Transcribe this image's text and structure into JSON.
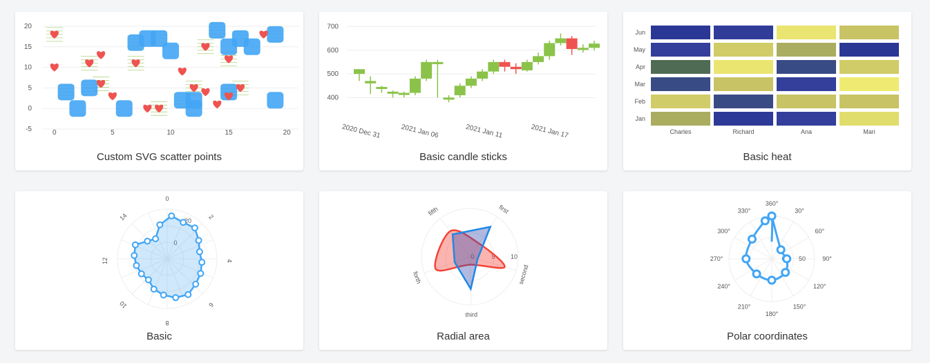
{
  "cards": {
    "scatter": {
      "caption": "Custom SVG scatter points"
    },
    "candles": {
      "caption": "Basic candle sticks"
    },
    "heat": {
      "caption": "Basic heat"
    },
    "radar": {
      "caption": "Basic"
    },
    "radial": {
      "caption": "Radial area"
    },
    "polar": {
      "caption": "Polar coordinates"
    }
  },
  "colors": {
    "blue": "#42a5f5",
    "red": "#ef5350",
    "green": "#8bc34a",
    "heat_navy": "#283593",
    "heat_yellow": "#f2ee73",
    "heat_teal": "#2e4d50",
    "radial_red": "#f44336",
    "radial_blue": "#1e88e5"
  },
  "chart_data": [
    {
      "id": "scatter",
      "type": "scatter",
      "title": "Custom SVG scatter points",
      "xlim": [
        -1,
        21
      ],
      "ylim": [
        -5,
        21
      ],
      "xticks": [
        "0",
        "5",
        "10",
        "15",
        "20"
      ],
      "yticks": [
        "-5",
        "0",
        "5",
        "10",
        "15",
        "20"
      ],
      "series": [
        {
          "marker": "square",
          "points": [
            [
              1,
              4
            ],
            [
              2,
              0
            ],
            [
              3,
              5
            ],
            [
              6,
              0
            ],
            [
              7,
              16
            ],
            [
              8,
              17
            ],
            [
              9,
              17
            ],
            [
              10,
              14
            ],
            [
              11,
              2
            ],
            [
              12,
              0
            ],
            [
              14,
              19
            ],
            [
              15,
              15
            ],
            [
              16,
              17
            ],
            [
              17,
              15
            ],
            [
              19,
              18
            ],
            [
              19,
              2
            ],
            [
              15,
              4
            ],
            [
              12,
              2
            ]
          ]
        },
        {
          "marker": "heart",
          "points": [
            [
              0,
              18
            ],
            [
              0,
              10
            ],
            [
              3,
              11
            ],
            [
              4,
              13
            ],
            [
              4,
              6
            ],
            [
              5,
              3
            ],
            [
              7,
              11
            ],
            [
              8,
              0
            ],
            [
              9,
              0
            ],
            [
              11,
              9
            ],
            [
              12,
              5
            ],
            [
              13,
              4
            ],
            [
              13,
              15
            ],
            [
              14,
              1
            ],
            [
              15,
              12
            ],
            [
              15,
              3
            ],
            [
              16,
              5
            ],
            [
              18,
              18
            ]
          ]
        }
      ]
    },
    {
      "id": "candles",
      "type": "candlestick",
      "title": "Basic candle sticks",
      "yticks": [
        "400",
        "500",
        "600",
        "700"
      ],
      "ylim": [
        340,
        710
      ],
      "xticks": [
        "2020 Dec 31",
        "2021 Jan 06",
        "2021 Jan 11",
        "2021 Jan 17"
      ],
      "ohlc": [
        [
          500,
          520,
          470,
          520
        ],
        [
          460,
          470,
          415,
          490
        ],
        [
          440,
          445,
          420,
          450
        ],
        [
          420,
          425,
          400,
          430
        ],
        [
          415,
          420,
          400,
          425
        ],
        [
          420,
          480,
          410,
          490
        ],
        [
          480,
          550,
          470,
          560
        ],
        [
          550,
          550,
          400,
          560
        ],
        [
          400,
          400,
          380,
          410
        ],
        [
          410,
          450,
          400,
          460
        ],
        [
          450,
          480,
          440,
          490
        ],
        [
          480,
          510,
          470,
          520
        ],
        [
          510,
          550,
          500,
          560
        ],
        [
          550,
          530,
          510,
          560
        ],
        [
          530,
          520,
          500,
          545
        ],
        [
          515,
          550,
          510,
          560
        ],
        [
          550,
          575,
          540,
          590
        ],
        [
          575,
          630,
          560,
          640
        ],
        [
          630,
          650,
          620,
          670
        ],
        [
          650,
          605,
          580,
          660
        ],
        [
          605,
          610,
          590,
          625
        ],
        [
          610,
          628,
          600,
          640
        ]
      ]
    },
    {
      "id": "heat",
      "type": "heatmap",
      "title": "Basic heat",
      "rows": [
        "Jun",
        "May",
        "Apr",
        "Mar",
        "Feb",
        "Jan"
      ],
      "columns": [
        "Charles",
        "Richard",
        "Ana",
        "Mari"
      ],
      "values": [
        [
          0.05,
          0.15,
          0.95,
          0.75
        ],
        [
          0.2,
          0.8,
          0.7,
          0.05
        ],
        [
          0.55,
          0.95,
          0.4,
          0.8
        ],
        [
          0.4,
          0.75,
          0.2,
          0.98
        ],
        [
          0.8,
          0.4,
          0.75,
          0.75
        ],
        [
          0.7,
          0.1,
          0.2,
          0.9
        ]
      ]
    },
    {
      "id": "radar",
      "type": "radar",
      "title": "Basic",
      "angular_ticks": [
        "0",
        "2",
        "4",
        "6",
        "8",
        "10",
        "12",
        "14"
      ],
      "radial_ticks": [
        "0",
        "20"
      ],
      "rmax": 30,
      "values": [
        26,
        24,
        25,
        22,
        20,
        21,
        22,
        23,
        25,
        24,
        22,
        20,
        17,
        18,
        19,
        20,
        21,
        16,
        14,
        21
      ]
    },
    {
      "id": "radial",
      "type": "area",
      "title": "Radial area",
      "categories": [
        "first",
        "second",
        "third",
        "forth",
        "fifth"
      ],
      "radial_ticks": [
        "0",
        "5",
        "10"
      ],
      "rmax": 12,
      "series": [
        {
          "color": "red",
          "values": [
            4,
            9,
            2,
            9,
            8
          ]
        },
        {
          "color": "blue",
          "values": [
            9,
            2,
            8,
            4,
            7
          ]
        }
      ]
    },
    {
      "id": "polar",
      "type": "line",
      "title": "Polar coordinates",
      "angle_ticks": [
        "360°",
        "30°",
        "60°",
        "90°",
        "120°",
        "150°",
        "180°",
        "210°",
        "240°",
        "270°",
        "300°",
        "330°"
      ],
      "radial_ticks": [
        "0",
        "50"
      ],
      "rmax": 100,
      "points": [
        [
          0,
          100
        ],
        [
          45,
          30
        ],
        [
          90,
          35
        ],
        [
          135,
          45
        ],
        [
          180,
          50
        ],
        [
          225,
          50
        ],
        [
          270,
          60
        ],
        [
          315,
          65
        ],
        [
          350,
          90
        ],
        [
          360,
          100
        ],
        [
          0,
          40
        ]
      ]
    }
  ]
}
